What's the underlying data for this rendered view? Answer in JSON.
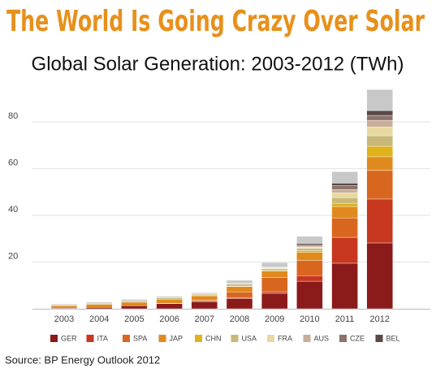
{
  "chart_data": {
    "type": "stacked_bar",
    "title": "The World Is Going Crazy Over Solar",
    "subtitle": "Global Solar Generation: 2003-2012 (TWh)",
    "source": "Source: BP Energy Outlook 2012",
    "categories": [
      "2003",
      "2004",
      "2005",
      "2006",
      "2007",
      "2008",
      "2009",
      "2010",
      "2011",
      "2012"
    ],
    "ylim": [
      0,
      95
    ],
    "yticks": [
      20,
      40,
      60,
      80
    ],
    "grid": true,
    "series": [
      {
        "name": "GER",
        "color": "#8b1a1a",
        "values": [
          0.3,
          0.6,
          1.3,
          2.2,
          3.1,
          4.4,
          6.6,
          11.8,
          19.5,
          28.2
        ]
      },
      {
        "name": "ITA",
        "color": "#c8371f",
        "values": [
          0,
          0,
          0,
          0,
          0.04,
          0.2,
          0.7,
          2.4,
          11.1,
          18.8
        ]
      },
      {
        "name": "SPA",
        "color": "#d9661e",
        "values": [
          0,
          0,
          0,
          0.1,
          0.5,
          2.6,
          6.0,
          6.4,
          8.3,
          12.2
        ]
      },
      {
        "name": "JAP",
        "color": "#e08a1e",
        "values": [
          1.0,
          1.3,
          1.5,
          1.8,
          1.9,
          2.3,
          2.8,
          3.5,
          4.9,
          5.9
        ]
      },
      {
        "name": "CHN",
        "color": "#e0b21b",
        "values": [
          0,
          0,
          0,
          0,
          0.1,
          0.2,
          0.3,
          0.7,
          1.4,
          4.5
        ]
      },
      {
        "name": "USA",
        "color": "#c9b87a",
        "values": [
          0.3,
          0.4,
          0.5,
          0.5,
          0.6,
          0.9,
          0.8,
          1.0,
          2.4,
          4.5
        ]
      },
      {
        "name": "FRA",
        "color": "#e8d9a0",
        "values": [
          0,
          0,
          0,
          0,
          0,
          0.1,
          0.2,
          0.6,
          2.1,
          3.8
        ]
      },
      {
        "name": "AUS",
        "color": "#c7ae98",
        "values": [
          0,
          0,
          0,
          0.1,
          0.1,
          0.1,
          0.2,
          0.4,
          1.4,
          2.8
        ]
      },
      {
        "name": "CZE",
        "color": "#8c7268",
        "values": [
          0,
          0,
          0,
          0,
          0,
          0,
          0.1,
          0.6,
          1.7,
          2.1
        ]
      },
      {
        "name": "BEL",
        "color": "#5a4848",
        "values": [
          0,
          0,
          0,
          0,
          0,
          0,
          0.2,
          0.6,
          1.0,
          2.1
        ]
      },
      {
        "color": "#c8c8c8",
        "values": [
          0.4,
          0.5,
          0.7,
          0.6,
          0.5,
          1.4,
          1.9,
          3.0,
          4.9,
          9.0
        ]
      }
    ]
  }
}
